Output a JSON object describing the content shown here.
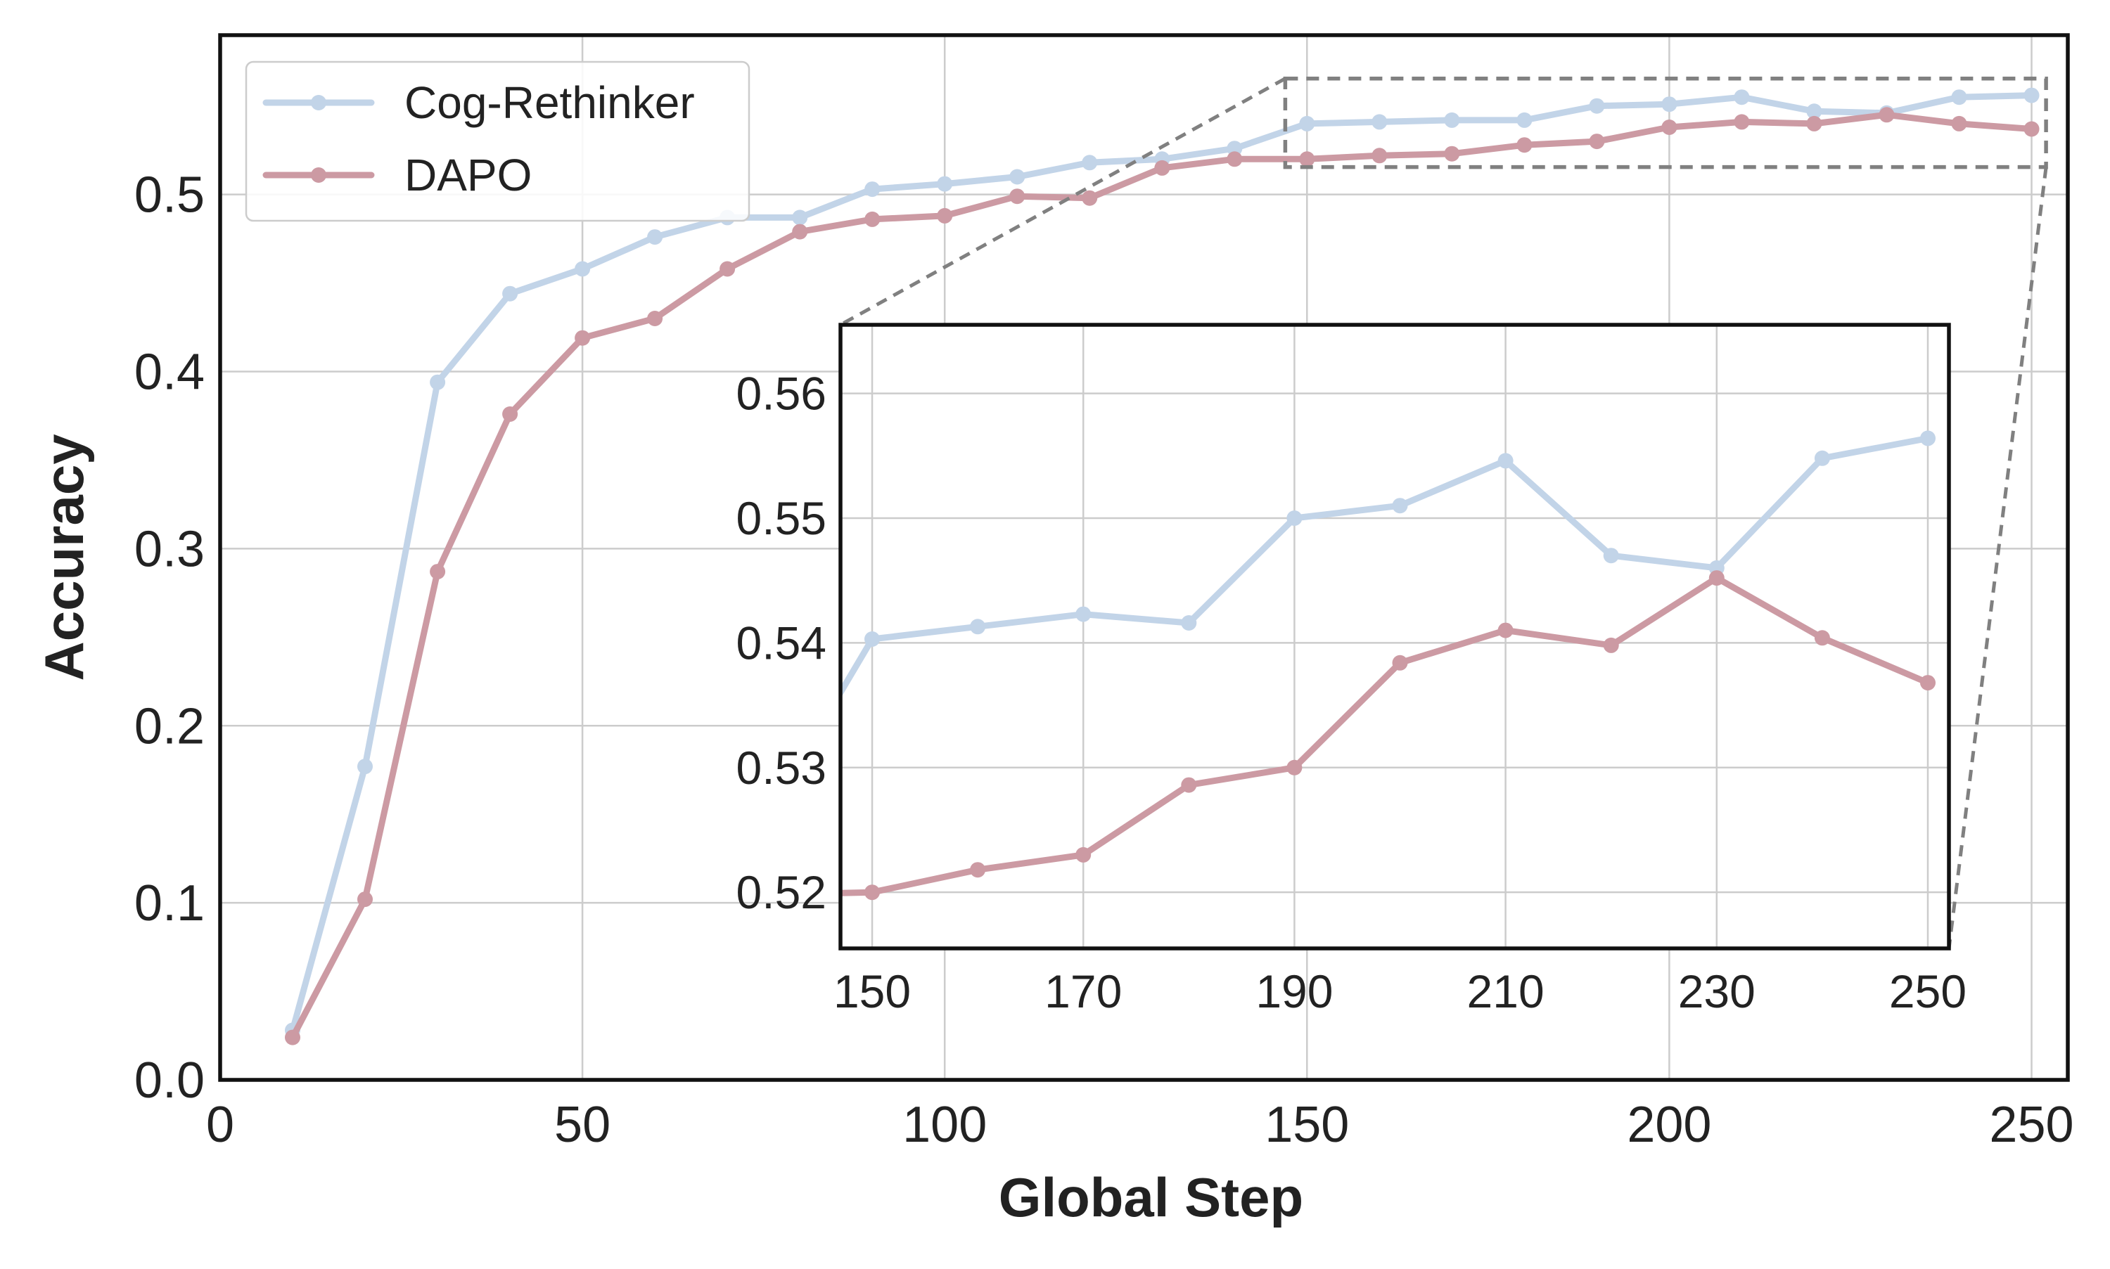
{
  "chart_data": [
    {
      "id": "main",
      "type": "line",
      "title": "",
      "xlabel": "Global Step",
      "ylabel": "Accuracy",
      "xlim": [
        0,
        255
      ],
      "ylim": [
        0,
        0.59
      ],
      "xticks": [
        0,
        50,
        100,
        150,
        200,
        250
      ],
      "xtick_labels": [
        "0",
        "50",
        "100",
        "150",
        "200",
        "250"
      ],
      "yticks": [
        0.0,
        0.1,
        0.2,
        0.3,
        0.4,
        0.5
      ],
      "ytick_labels": [
        "0.0",
        "0.1",
        "0.2",
        "0.3",
        "0.4",
        "0.5"
      ],
      "grid": true,
      "legend_position": "top-left",
      "x": [
        10,
        20,
        30,
        40,
        50,
        60,
        70,
        80,
        90,
        100,
        110,
        120,
        130,
        140,
        150,
        160,
        170,
        180,
        190,
        200,
        210,
        220,
        230,
        240,
        250
      ],
      "series": [
        {
          "name": "Cog-Rethinker",
          "color": "#c2d4e8",
          "values": [
            0.028,
            0.177,
            0.394,
            0.444,
            0.458,
            0.476,
            0.487,
            0.487,
            0.503,
            0.506,
            0.51,
            0.518,
            0.52,
            0.526,
            0.54,
            0.541,
            0.542,
            0.542,
            0.55,
            0.551,
            0.555,
            0.547,
            0.546,
            0.555,
            0.556
          ]
        },
        {
          "name": "DAPO",
          "color": "#cc9aa3",
          "values": [
            0.024,
            0.102,
            0.287,
            0.376,
            0.419,
            0.43,
            0.458,
            0.479,
            0.486,
            0.488,
            0.499,
            0.498,
            0.515,
            0.52,
            0.52,
            0.522,
            0.523,
            0.528,
            0.53,
            0.538,
            0.541,
            0.54,
            0.545,
            0.54,
            0.537
          ]
        }
      ]
    },
    {
      "id": "inset",
      "type": "line",
      "title": "",
      "xlabel": "",
      "ylabel": "",
      "xlim": [
        147,
        252
      ],
      "ylim": [
        0.5155,
        0.5655
      ],
      "xticks": [
        150,
        170,
        190,
        210,
        230,
        250
      ],
      "xtick_labels": [
        "150",
        "170",
        "190",
        "210",
        "230",
        "250"
      ],
      "yticks": [
        0.52,
        0.53,
        0.54,
        0.55,
        0.56
      ],
      "ytick_labels": [
        "0.52",
        "0.53",
        "0.54",
        "0.55",
        "0.56"
      ],
      "grid": true,
      "legend_position": "none",
      "x": [
        140,
        150,
        160,
        170,
        180,
        190,
        200,
        210,
        220,
        230,
        240,
        250
      ],
      "series": [
        {
          "name": "Cog-Rethinker",
          "color": "#c2d4e8",
          "values": [
            0.526,
            0.5403,
            0.5413,
            0.5423,
            0.5416,
            0.55,
            0.551,
            0.5546,
            0.547,
            0.546,
            0.5548,
            0.5564
          ]
        },
        {
          "name": "DAPO",
          "color": "#cc9aa3",
          "values": [
            0.5198,
            0.52,
            0.5218,
            0.523,
            0.5286,
            0.53,
            0.5384,
            0.541,
            0.5398,
            0.5452,
            0.5404,
            0.5368
          ]
        }
      ]
    }
  ]
}
